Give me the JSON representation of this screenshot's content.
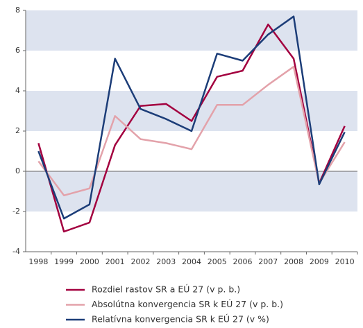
{
  "chart_data": {
    "type": "line",
    "categories": [
      "1998",
      "1999",
      "2000",
      "2001",
      "2002",
      "2003",
      "2004",
      "2005",
      "2006",
      "2007",
      "2008",
      "2009",
      "2010"
    ],
    "series": [
      {
        "name": "Rozdiel rastov SR a EÚ 27 (v p. b.)",
        "color": "#a3003f",
        "values": [
          1.4,
          -3.0,
          -2.55,
          1.3,
          3.25,
          3.35,
          2.5,
          4.7,
          5.0,
          7.3,
          5.6,
          -0.6,
          2.25
        ]
      },
      {
        "name": "Absolútna konvergencia SR k EÚ 27 (v p. b.)",
        "color": "#e3a2aa",
        "values": [
          0.5,
          -1.2,
          -0.85,
          2.75,
          1.6,
          1.4,
          1.1,
          3.3,
          3.3,
          4.3,
          5.2,
          -0.6,
          1.45
        ]
      },
      {
        "name": "Relatívna konvergencia SR k EÚ 27 (v %)",
        "color": "#1c3d78",
        "values": [
          1.0,
          -2.35,
          -1.65,
          5.6,
          3.1,
          2.6,
          2.0,
          5.85,
          5.5,
          6.8,
          7.7,
          -0.65,
          1.95
        ]
      }
    ],
    "ylim": [
      -4,
      8
    ],
    "yticks": [
      -4,
      -2,
      0,
      2,
      4,
      6,
      8
    ],
    "grid": true
  }
}
